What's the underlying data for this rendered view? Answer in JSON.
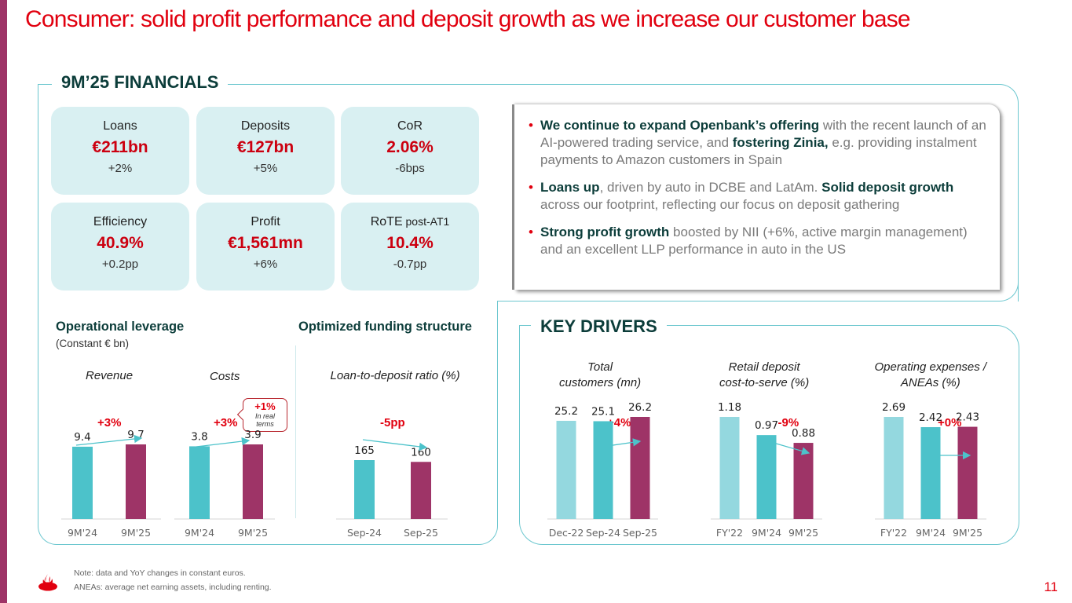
{
  "title": "Consumer: solid profit performance and deposit growth as we increase our customer base",
  "sections": {
    "financials": "9M’25 FINANCIALS",
    "key_drivers": "KEY DRIVERS"
  },
  "kpis": [
    {
      "label": "Loans",
      "label_suffix": "",
      "value": "€211bn",
      "change": "+2%"
    },
    {
      "label": "Deposits",
      "label_suffix": "",
      "value": "€127bn",
      "change": "+5%"
    },
    {
      "label": "CoR",
      "label_suffix": "",
      "value": "2.06%",
      "change": "-6bps"
    },
    {
      "label": "Efficiency",
      "label_suffix": "",
      "value": "40.9%",
      "change": "+0.2pp"
    },
    {
      "label": "Profit",
      "label_suffix": "",
      "value": "€1,561mn",
      "change": "+6%"
    },
    {
      "label": "RoTE",
      "label_suffix": "post-AT1",
      "value": "10.4%",
      "change": "-0.7pp"
    }
  ],
  "bullets": [
    [
      {
        "text": "We continue to expand Openbank’s offering",
        "bold": true
      },
      {
        "text": " with the recent launch of an AI-powered trading service, and ",
        "bold": false
      },
      {
        "text": "fostering Zinia,",
        "bold": true
      },
      {
        "text": " e.g. providing instalment payments to Amazon customers in Spain",
        "bold": false
      }
    ],
    [
      {
        "text": "Loans up",
        "bold": true
      },
      {
        "text": ", driven by auto in DCBE and LatAm. ",
        "bold": false
      },
      {
        "text": "Solid deposit growth",
        "bold": true
      },
      {
        "text": " across our footprint, reflecting our focus on deposit gathering",
        "bold": false
      }
    ],
    [
      {
        "text": "Strong profit growth",
        "bold": true
      },
      {
        "text": " boosted by NII (+6%, active margin management) and an excellent LLP performance in auto in the US",
        "bold": false
      }
    ]
  ],
  "operational_leverage": {
    "heading": "Operational leverage",
    "note": "(Constant € bn)",
    "bubble_value": "+1%",
    "bubble_note": "In real terms"
  },
  "funding": {
    "heading": "Optimized funding structure"
  },
  "colors": {
    "teal": "#4cc2ca",
    "light_teal": "#94d8df",
    "plum": "#9e3467",
    "red": "#e1000f",
    "dark_green": "#0c3d3a"
  },
  "chart_data": [
    {
      "type": "bar",
      "title": "Revenue",
      "delta": "+3%",
      "trend": "up",
      "categories": [
        "9M'24",
        "9M'25"
      ],
      "values": [
        9.4,
        9.7
      ],
      "labels": [
        "9.4",
        "9.7"
      ],
      "colors": [
        "teal",
        "plum"
      ],
      "ylim": [
        0,
        12
      ]
    },
    {
      "type": "bar",
      "title": "Costs",
      "delta": "+3%",
      "trend": "up",
      "categories": [
        "9M'24",
        "9M'25"
      ],
      "values": [
        3.8,
        3.9
      ],
      "labels": [
        "3.8",
        "3.9"
      ],
      "colors": [
        "teal",
        "plum"
      ],
      "ylim": [
        0,
        12
      ]
    },
    {
      "type": "bar",
      "title": "Loan-to-deposit ratio (%)",
      "delta": "-5pp",
      "trend": "down",
      "categories": [
        "Sep-24",
        "Sep-25"
      ],
      "values": [
        165,
        160
      ],
      "labels": [
        "165",
        "160"
      ],
      "colors": [
        "teal",
        "plum"
      ],
      "ylim": [
        0,
        200
      ]
    },
    {
      "type": "bar",
      "title": "Total customers (mn)",
      "delta": "+4%",
      "trend": "up",
      "categories": [
        "Dec-22",
        "Sep-24",
        "Sep-25"
      ],
      "values": [
        25.2,
        25.1,
        26.2
      ],
      "labels": [
        "25.2",
        "25.1",
        "26.2"
      ],
      "colors": [
        "light_teal",
        "teal",
        "plum"
      ],
      "ylim": [
        0,
        70
      ]
    },
    {
      "type": "bar",
      "title": "Retail deposit cost-to-serve (%)",
      "delta": "-9%",
      "trend": "down",
      "categories": [
        "FY'22",
        "9M'24",
        "9M'25"
      ],
      "values": [
        1.18,
        0.97,
        0.88
      ],
      "labels": [
        "1.18",
        "0.97",
        "0.88"
      ],
      "colors": [
        "light_teal",
        "teal",
        "plum"
      ],
      "ylim": [
        0,
        3.1
      ]
    },
    {
      "type": "bar",
      "title": "Operating expenses / ANEAs (%)",
      "delta": "+0%",
      "trend": "flat",
      "categories": [
        "FY'22",
        "9M'24",
        "9M'25"
      ],
      "values": [
        2.69,
        2.42,
        2.43
      ],
      "labels": [
        "2.69",
        "2.42",
        "2.43"
      ],
      "colors": [
        "light_teal",
        "teal",
        "plum"
      ],
      "ylim": [
        0,
        6
      ]
    }
  ],
  "chart_titles_display": [
    [
      "Revenue"
    ],
    [
      "Costs"
    ],
    [
      "Loan-to-deposit ratio (%)"
    ],
    [
      "Total",
      "customers (mn)"
    ],
    [
      "Retail deposit",
      "cost-to-serve (%)"
    ],
    [
      "Operating expenses /",
      "ANEAs (%)"
    ]
  ],
  "footnotes": [
    "Note: data and YoY changes in constant euros.",
    "ANEAs: average net earning assets, including renting."
  ],
  "page_number": "11"
}
